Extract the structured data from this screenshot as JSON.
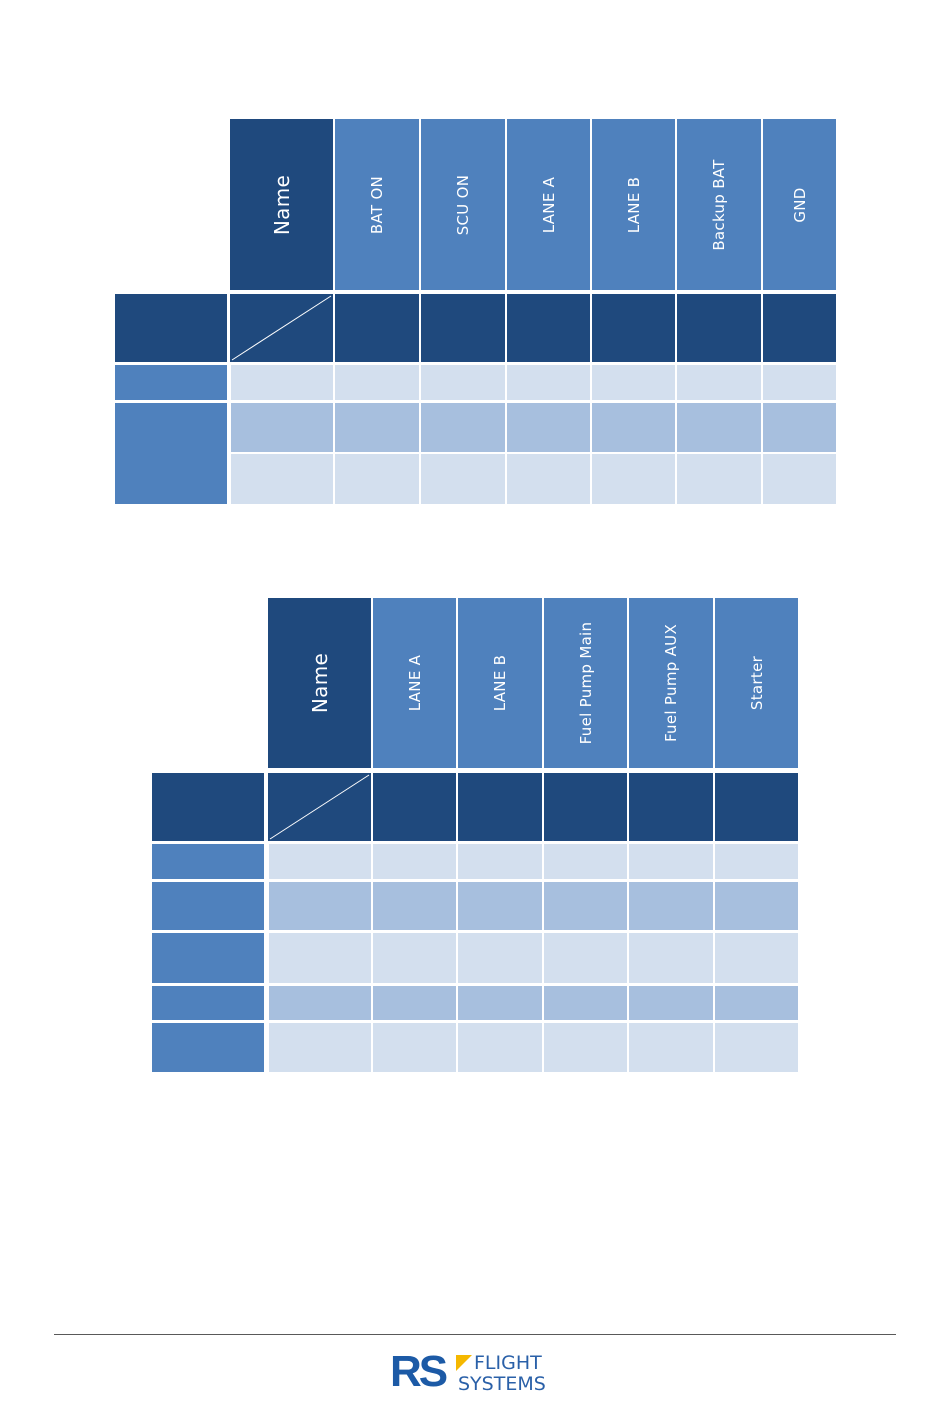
{
  "table1": {
    "name_header": "Name",
    "columns": [
      "BAT ON",
      "SCU ON",
      "LANE A",
      "LANE B",
      "Backup BAT",
      "GND"
    ]
  },
  "table2": {
    "name_header": "Name",
    "columns": [
      "LANE A",
      "LANE B",
      "Fuel Pump Main",
      "Fuel Pump AUX",
      "Starter"
    ]
  },
  "footer": {
    "logo_letters": "RS",
    "logo_line1": "FLIGHT",
    "logo_line2": "SYSTEMS",
    "colors": {
      "logo_blue": "#1c5aa6",
      "logo_yellow": "#f5b800"
    }
  }
}
